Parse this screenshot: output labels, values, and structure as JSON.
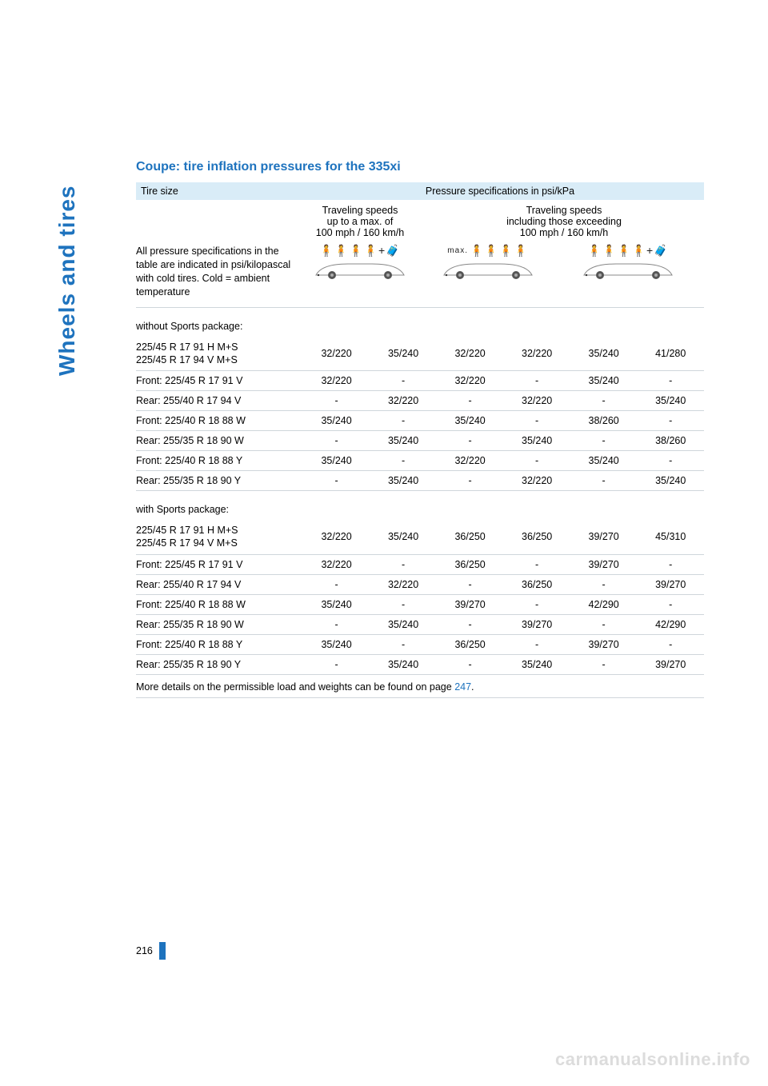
{
  "side_label": "Wheels and tires",
  "title": "Coupe: tire inflation pressures for the 335xi",
  "header": {
    "tire_size": "Tire size",
    "pressure_spec": "Pressure specifications in psi/kPa"
  },
  "speed_headers": {
    "col1_line1": "Traveling speeds",
    "col1_line2": "up to a max. of",
    "col1_line3": "100 mph / 160 km/h",
    "col2_line1": "Traveling speeds",
    "col2_line2": "including those exceeding",
    "col2_line3": "100 mph / 160 km/h"
  },
  "note_block": "All pressure specifications in the table are indicated in psi/kilopascal with cold tires. Cold = ambient temperature",
  "icon_max_label": "max.",
  "sections": {
    "without": "without Sports package:",
    "with": "with Sports package:"
  },
  "without_rows": [
    {
      "label": "225/45 R 17 91 H M+S\n225/45 R 17 94 V M+S",
      "v": [
        "32/220",
        "35/240",
        "32/220",
        "32/220",
        "35/240",
        "41/280"
      ]
    },
    {
      "label": "Front: 225/45 R 17 91 V",
      "v": [
        "32/220",
        "-",
        "32/220",
        "-",
        "35/240",
        "-"
      ]
    },
    {
      "label": "Rear: 255/40 R 17 94 V",
      "v": [
        "-",
        "32/220",
        "-",
        "32/220",
        "-",
        "35/240"
      ]
    },
    {
      "label": "Front: 225/40 R 18 88 W",
      "v": [
        "35/240",
        "-",
        "35/240",
        "-",
        "38/260",
        "-"
      ]
    },
    {
      "label": "Rear: 255/35 R 18 90 W",
      "v": [
        "-",
        "35/240",
        "-",
        "35/240",
        "-",
        "38/260"
      ]
    },
    {
      "label": "Front: 225/40 R 18 88 Y",
      "v": [
        "35/240",
        "-",
        "32/220",
        "-",
        "35/240",
        "-"
      ]
    },
    {
      "label": "Rear: 255/35 R 18 90 Y",
      "v": [
        "-",
        "35/240",
        "-",
        "32/220",
        "-",
        "35/240"
      ]
    }
  ],
  "with_rows": [
    {
      "label": "225/45 R 17 91 H M+S\n225/45 R 17 94 V M+S",
      "v": [
        "32/220",
        "35/240",
        "36/250",
        "36/250",
        "39/270",
        "45/310"
      ]
    },
    {
      "label": "Front: 225/45 R 17 91 V",
      "v": [
        "32/220",
        "-",
        "36/250",
        "-",
        "39/270",
        "-"
      ]
    },
    {
      "label": "Rear: 255/40 R 17 94 V",
      "v": [
        "-",
        "32/220",
        "-",
        "36/250",
        "-",
        "39/270"
      ]
    },
    {
      "label": "Front: 225/40 R 18 88 W",
      "v": [
        "35/240",
        "-",
        "39/270",
        "-",
        "42/290",
        "-"
      ]
    },
    {
      "label": "Rear: 255/35 R 18 90 W",
      "v": [
        "-",
        "35/240",
        "-",
        "39/270",
        "-",
        "42/290"
      ]
    },
    {
      "label": "Front: 225/40 R 18 88 Y",
      "v": [
        "35/240",
        "-",
        "36/250",
        "-",
        "39/270",
        "-"
      ]
    },
    {
      "label": "Rear: 255/35 R 18 90 Y",
      "v": [
        "-",
        "35/240",
        "-",
        "35/240",
        "-",
        "39/270"
      ]
    }
  ],
  "footnote": {
    "text_before": "More details on the permissible load and weights can be found on page ",
    "page_link": "247",
    "text_after": "."
  },
  "page_number": "216",
  "watermark": "carmanualsonline.info",
  "colors": {
    "accent": "#1e73be",
    "header_bg": "#d9ecf7",
    "rule": "#cfd6db",
    "watermark": "#dcdcdc"
  }
}
